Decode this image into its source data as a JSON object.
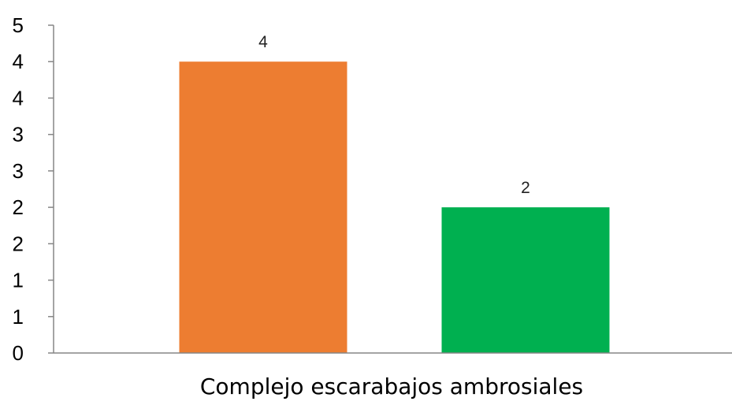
{
  "chart_data": {
    "type": "bar",
    "categories": [
      "Complejo escarabajos ambrosiales"
    ],
    "series": [
      {
        "values": [
          4
        ],
        "color": "#ED7D31"
      },
      {
        "values": [
          2
        ],
        "color": "#00B050"
      }
    ],
    "data_labels": [
      "4",
      "2"
    ],
    "y_tick_labels": [
      "0",
      "1",
      "1",
      "2",
      "2",
      "3",
      "3",
      "4",
      "4",
      "5"
    ],
    "ylim": [
      0,
      4.5
    ],
    "grid": false,
    "legend": "none",
    "title": "",
    "xlabel": "",
    "ylabel": ""
  }
}
